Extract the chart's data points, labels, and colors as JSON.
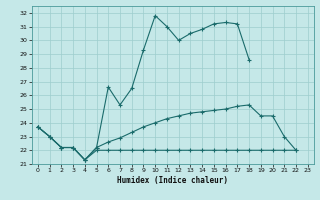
{
  "xlabel": "Humidex (Indice chaleur)",
  "background_color": "#c5e8e8",
  "grid_color": "#9ecece",
  "line_color": "#1a6b6b",
  "xlim": [
    -0.5,
    23.5
  ],
  "ylim": [
    21.0,
    32.5
  ],
  "yticks": [
    21,
    22,
    23,
    24,
    25,
    26,
    27,
    28,
    29,
    30,
    31,
    32
  ],
  "xticks": [
    0,
    1,
    2,
    3,
    4,
    5,
    6,
    7,
    8,
    9,
    10,
    11,
    12,
    13,
    14,
    15,
    16,
    17,
    18,
    19,
    20,
    21,
    22,
    23
  ],
  "curve1_x": [
    0,
    1,
    2,
    3,
    4,
    5,
    6,
    7,
    8,
    9,
    10,
    11,
    12,
    13,
    14,
    15,
    16,
    17,
    18
  ],
  "curve1_y": [
    23.7,
    23.0,
    22.2,
    22.2,
    21.3,
    22.2,
    26.6,
    25.3,
    26.5,
    29.3,
    31.8,
    31.0,
    30.0,
    30.5,
    30.8,
    31.2,
    31.3,
    31.2,
    28.6
  ],
  "curve2_x": [
    0,
    1,
    2,
    3,
    4,
    5,
    6,
    7,
    8,
    9,
    10,
    11,
    12,
    13,
    14,
    15,
    16,
    17,
    18,
    19,
    20,
    21,
    22
  ],
  "curve2_y": [
    23.7,
    23.0,
    22.2,
    22.2,
    21.3,
    22.2,
    22.6,
    22.9,
    23.3,
    23.7,
    24.0,
    24.3,
    24.5,
    24.7,
    24.8,
    24.9,
    25.0,
    25.2,
    25.3,
    24.5,
    24.5,
    23.0,
    22.0
  ],
  "curve3_x": [
    0,
    1,
    2,
    3,
    4,
    5,
    6,
    7,
    8,
    9,
    10,
    11,
    12,
    13,
    14,
    15,
    16,
    17,
    18,
    19,
    20,
    21,
    22
  ],
  "curve3_y": [
    23.7,
    23.0,
    22.2,
    22.2,
    21.3,
    22.0,
    22.0,
    22.0,
    22.0,
    22.0,
    22.0,
    22.0,
    22.0,
    22.0,
    22.0,
    22.0,
    22.0,
    22.0,
    22.0,
    22.0,
    22.0,
    22.0,
    22.0
  ],
  "linewidth": 0.8,
  "markersize": 3.5
}
